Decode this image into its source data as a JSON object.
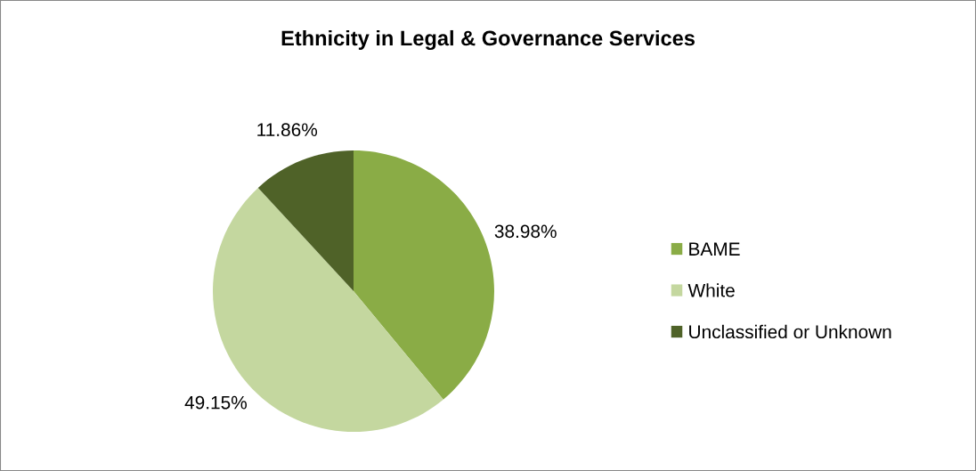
{
  "chart_data": {
    "type": "pie",
    "title": "Ethnicity in Legal & Governance Services",
    "categories": [
      "BAME",
      "White",
      "Unclassified or Unknown"
    ],
    "values": [
      38.98,
      49.15,
      11.86
    ],
    "value_labels": [
      "38.98%",
      "49.15%",
      "11.86%"
    ],
    "colors": [
      "#8aac46",
      "#c4d79f",
      "#4f6228"
    ],
    "legend": "right"
  }
}
